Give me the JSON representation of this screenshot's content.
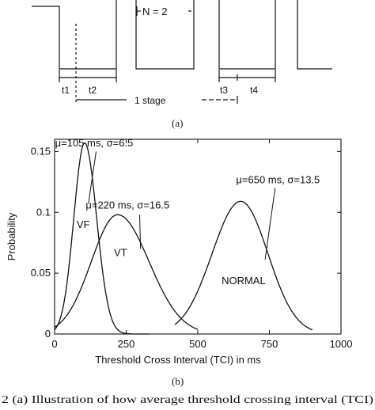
{
  "figure_a": {
    "n_label": "N = 2",
    "interval_labels": [
      "t1",
      "t2",
      "t3",
      "t4"
    ],
    "stage_label": "1 stage",
    "caption_label": "(a)"
  },
  "figure_b": {
    "caption_label": "(b)"
  },
  "caption": {
    "text": "2   (a) Illustration of how average threshold crossing interval (TCI)"
  },
  "chart_data": {
    "type": "line",
    "title": "",
    "xlabel": "Threshold Cross Interval (TCI) in ms",
    "ylabel": "Probability",
    "xlim": [
      0,
      1000
    ],
    "ylim": [
      0,
      0.16
    ],
    "xticks": [
      "0",
      "250",
      "500",
      "750",
      "1000"
    ],
    "yticks": [
      "0",
      "0.05",
      "0.1",
      "0.15"
    ],
    "x_tick_values": [
      0,
      250,
      500,
      750,
      1000
    ],
    "y_tick_values": [
      0,
      0.05,
      0.1,
      0.15
    ],
    "grid": false,
    "series": [
      {
        "name": "VF",
        "mu": 105,
        "sigma": 6.5,
        "annotation": "μ=105 ms, σ=6.5",
        "peak": [
          105,
          0.157
        ]
      },
      {
        "name": "VT",
        "mu": 220,
        "sigma": 16.5,
        "annotation": "μ=220 ms, σ=16.5",
        "peak": [
          220,
          0.098
        ]
      },
      {
        "name": "NORMAL",
        "mu": 650,
        "sigma": 13.5,
        "annotation": "μ=650 ms, σ=13.5",
        "peak": [
          650,
          0.109
        ]
      }
    ]
  }
}
